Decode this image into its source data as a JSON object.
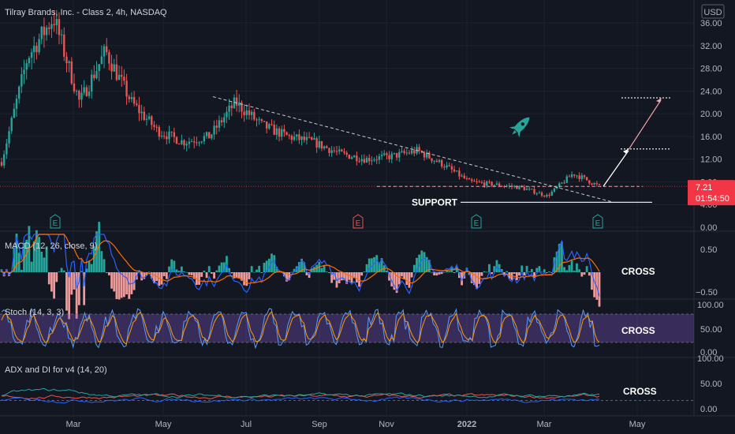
{
  "header": {
    "title": "Tilray Brands, Inc. - Class 2, 4h, NASDAQ",
    "currency": "USD"
  },
  "price_tag": {
    "value": "7.21",
    "countdown": "01:54:50"
  },
  "colors": {
    "bg": "#131722",
    "up": "#26a69a",
    "down": "#ef5350",
    "grid": "#1e222d",
    "stoch_band": "#7e57c2",
    "macd": "#2962ff",
    "signal": "#ff6d00",
    "accent": "#f23645"
  },
  "annotations": {
    "support": "SUPPORT",
    "macd_cross": "CROSS",
    "stoch_cross": "CROSS",
    "adx_cross": "CROSS"
  },
  "earnings_markers": [
    "E",
    "E",
    "E",
    "E"
  ],
  "chart_data": [
    {
      "type": "candlestick",
      "title": "Tilray Brands, Inc. - Class 2, 4h, NASDAQ",
      "y_ticks": [
        "36.00",
        "32.00",
        "28.00",
        "24.00",
        "20.00",
        "16.00",
        "12.00",
        "8.00",
        "4.00",
        "0.00"
      ],
      "ylim": [
        0,
        38
      ],
      "x_ticks": [
        "Mar",
        "May",
        "Jul",
        "Sep",
        "Nov",
        "2022",
        "Mar",
        "May"
      ],
      "approx_close_path": [
        [
          "Jan",
          11.5
        ],
        [
          "Feb",
          30
        ],
        [
          "Feb",
          37
        ],
        [
          "Mar",
          22
        ],
        [
          "Mar",
          31
        ],
        [
          "Apr",
          22
        ],
        [
          "Apr",
          17
        ],
        [
          "May",
          15
        ],
        [
          "May",
          16
        ],
        [
          "Jun",
          22
        ],
        [
          "Jun",
          18
        ],
        [
          "Jul",
          16
        ],
        [
          "Aug",
          15
        ],
        [
          "Aug",
          13
        ],
        [
          "Sep",
          12
        ],
        [
          "Oct",
          12.5
        ],
        [
          "Nov",
          13.5
        ],
        [
          "Nov",
          11
        ],
        [
          "Dec",
          8
        ],
        [
          "Jan",
          7.5
        ],
        [
          "Feb",
          7
        ],
        [
          "Mar",
          5.5
        ],
        [
          "Mar",
          9.5
        ],
        [
          "Apr",
          7.2
        ]
      ],
      "last_price": 7.21,
      "downtrend_line": [
        [
          23,
          2.4
        ]
      ],
      "resistance_line": 7.2,
      "support_line": 4.4,
      "target_levels": [
        13.8,
        22.8
      ]
    },
    {
      "type": "line",
      "title": "MACD (12, 26, close, 9)",
      "y_ticks": [
        "0.50",
        "−0.50"
      ],
      "series": [
        {
          "name": "MACD"
        },
        {
          "name": "Signal"
        },
        {
          "name": "Histogram"
        }
      ]
    },
    {
      "type": "line",
      "title": "Stoch (14, 3, 3)",
      "y_ticks": [
        "100.00",
        "50.00",
        "0.00"
      ],
      "band": [
        20,
        80
      ]
    },
    {
      "type": "line",
      "title": "ADX and DI for v4 (14, 20)",
      "y_ticks": [
        "100.00",
        "50.00",
        "0.00"
      ],
      "reference_level": 20
    }
  ]
}
